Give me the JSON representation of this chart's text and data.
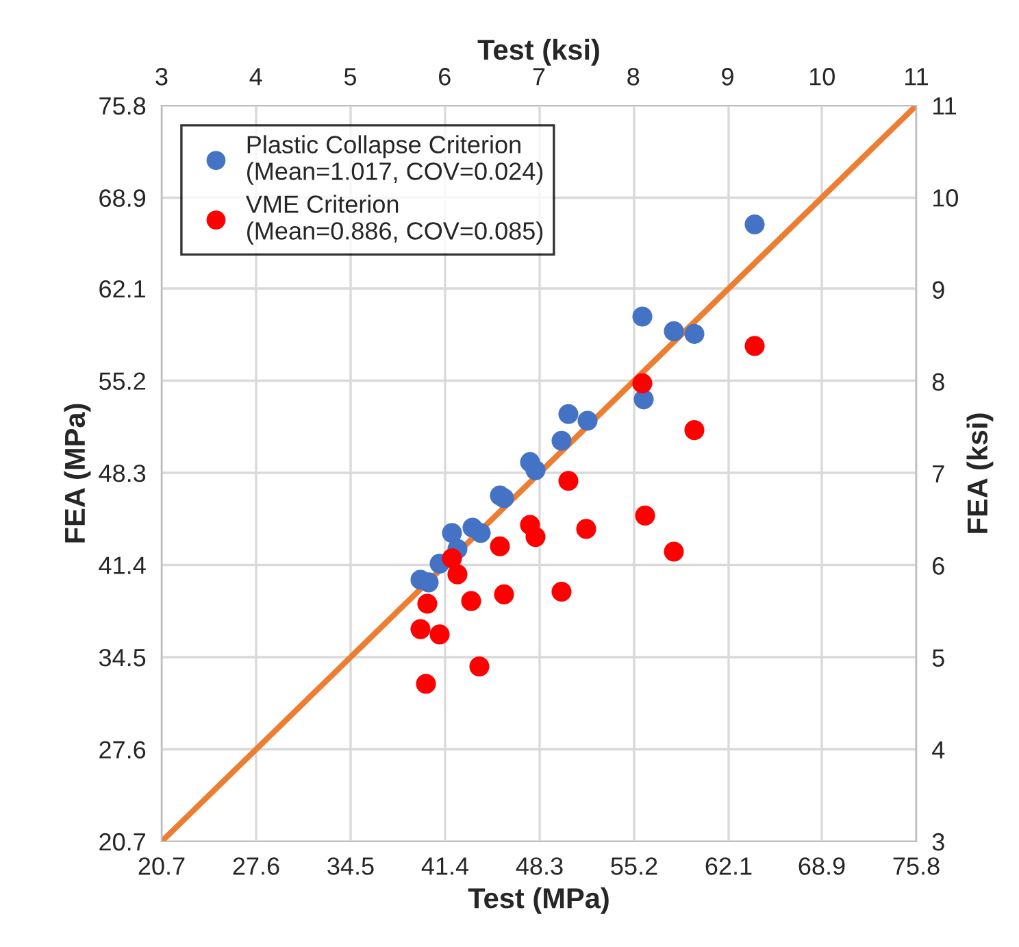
{
  "chart_data": {
    "type": "scatter",
    "xlabel": "Test (MPa)",
    "ylabel": "FEA (MPa)",
    "x2label": "Test (ksi)",
    "y2label": "FEA (ksi)",
    "xlim": [
      20.7,
      75.8
    ],
    "xticks": [
      20.7,
      27.6,
      34.5,
      41.4,
      48.3,
      55.2,
      62.1,
      68.9,
      75.8
    ],
    "ylim": [
      20.7,
      75.8
    ],
    "yticks": [
      20.7,
      27.6,
      34.5,
      41.4,
      48.3,
      55.2,
      62.1,
      68.9,
      75.8
    ],
    "x2lim": [
      3,
      11
    ],
    "x2ticks": [
      3,
      4,
      5,
      6,
      7,
      8,
      9,
      10,
      11
    ],
    "y2lim": [
      3,
      11
    ],
    "y2ticks": [
      3,
      4,
      5,
      6,
      7,
      8,
      9,
      10,
      11
    ],
    "grid": true,
    "legend": "top left",
    "marker": "circle",
    "series": [
      {
        "type": "line",
        "color": "#ed7d31",
        "x": [
          20.7,
          75.8
        ],
        "values": [
          20.7,
          75.8
        ],
        "marker": "none"
      },
      {
        "name": "Plastic Collapse Criterion\n(Mean=1.017, COV=0.024)",
        "color": "#4472c4",
        "x": [
          64.0,
          55.8,
          58.1,
          59.6,
          55.9,
          50.4,
          51.8,
          49.9,
          47.6,
          48.0,
          45.4,
          45.7,
          43.4,
          44.0,
          41.9,
          42.3,
          41.0,
          39.6,
          40.2
        ],
        "values": [
          66.9,
          60.0,
          58.9,
          58.7,
          53.8,
          52.7,
          52.2,
          50.7,
          49.1,
          48.5,
          46.6,
          46.4,
          44.2,
          43.8,
          43.8,
          42.6,
          41.5,
          40.3,
          40.1
        ]
      },
      {
        "name": "VME Criterion\n(Mean=0.886, COV=0.085)",
        "color": "#ff0000",
        "x": [
          64.0,
          55.8,
          59.6,
          50.4,
          56.0,
          47.6,
          48.0,
          51.7,
          45.4,
          58.1,
          41.9,
          42.3,
          45.7,
          49.9,
          43.3,
          40.1,
          39.6,
          41.0,
          43.9,
          40.0
        ],
        "values": [
          57.8,
          55.0,
          51.5,
          47.7,
          45.1,
          44.4,
          43.5,
          44.1,
          42.8,
          42.4,
          41.9,
          40.7,
          39.2,
          39.4,
          38.7,
          38.5,
          36.6,
          36.2,
          33.8,
          32.5
        ]
      }
    ]
  }
}
